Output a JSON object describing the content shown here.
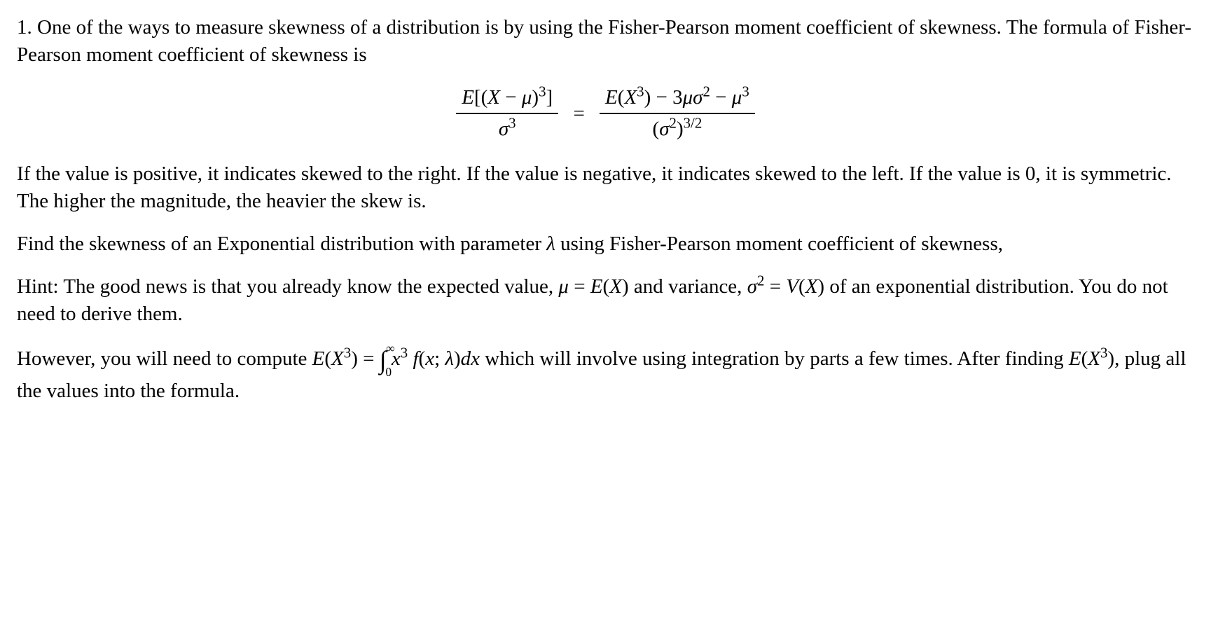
{
  "para1": "1. One of the ways to measure skewness of a distribution is by using the Fisher-Pearson moment coefficient of skewness. The formula of Fisher-Pearson moment coefficient of skewness is",
  "formula": {
    "left_num_a": "E",
    "left_num_b": "[(",
    "left_num_c": "X",
    "left_num_d": " − ",
    "left_num_e": "μ",
    "left_num_f": ")",
    "left_num_sup": "3",
    "left_num_g": "]",
    "left_den_a": "σ",
    "left_den_sup": "3",
    "eq": "=",
    "right_num_a": "E",
    "right_num_b": "(",
    "right_num_c": "X",
    "right_num_sup1": "3",
    "right_num_d": ") − 3",
    "right_num_e": "μσ",
    "right_num_sup2": "2",
    "right_num_f": " − ",
    "right_num_g": "μ",
    "right_num_sup3": "3",
    "right_den_a": "(",
    "right_den_b": "σ",
    "right_den_sup1": "2",
    "right_den_c": ")",
    "right_den_sup2": "3/2"
  },
  "para2": "If the value is positive, it indicates skewed to the right. If the value is negative, it indicates skewed to the left. If the value is 0, it is symmetric. The higher the magnitude, the heavier the skew is.",
  "para3_a": "Find the skewness of an Exponential distribution with parameter ",
  "para3_lambda": "λ",
  "para3_b": " using Fisher-Pearson moment coefficient of skewness,",
  "para4_a": "Hint: The good news is that you already know the expected value, ",
  "para4_mu": "μ",
  "para4_eq1a": " = ",
  "para4_EX_E": "E",
  "para4_EX_paren": "(",
  "para4_EX_X": "X",
  "para4_EX_close": ")",
  "para4_b": " and variance, ",
  "para4_sigma": "σ",
  "para4_sigma_sup": "2",
  "para4_eq2a": " = ",
  "para4_VX_V": "V",
  "para4_VX_paren": "(",
  "para4_VX_X": "X",
  "para4_VX_close": ")",
  "para4_c": " of an exponential distribution. You do not need to derive them.",
  "para5_a": "However, you will need to compute ",
  "para5_EX3_E": "E",
  "para5_EX3_paren": "(",
  "para5_EX3_X": "X",
  "para5_EX3_sup": "3",
  "para5_EX3_close": ")",
  "para5_eq": " = ",
  "para5_int_low": "0",
  "para5_int_high": "∞",
  "para5_int_x": "x",
  "para5_int_xsup": "3",
  "para5_int_sp": " ",
  "para5_int_f": "f",
  "para5_int_open": "(",
  "para5_int_xarg": "x",
  "para5_int_semi": "; ",
  "para5_int_lam": "λ",
  "para5_int_close": ")",
  "para5_int_dx_d": "d",
  "para5_int_dx_x": "x",
  "para5_b": " which will involve using integration by parts a few times. After finding ",
  "para5_EX3b_E": "E",
  "para5_EX3b_paren": "(",
  "para5_EX3b_X": "X",
  "para5_EX3b_sup": "3",
  "para5_EX3b_close": ")",
  "para5_c": ", plug all the values into the formula."
}
